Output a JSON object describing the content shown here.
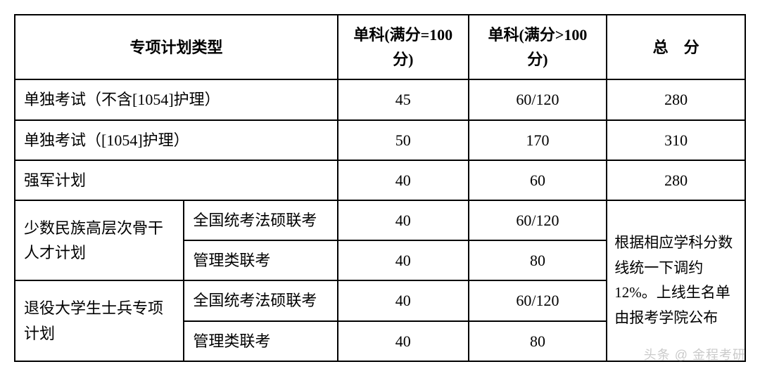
{
  "colors": {
    "border": "#000000",
    "background": "#ffffff",
    "text": "#000000",
    "watermark": "rgba(180,180,180,0.7)"
  },
  "typography": {
    "font_family": "SimSun, 宋体, serif",
    "header_weight": "bold",
    "cell_fontsize": 22,
    "line_height": 1.6
  },
  "headers": {
    "plan_type": "专项计划类型",
    "subject_100": "单科(满分=100 分)",
    "subject_gt100": "单科(满分>100 分)",
    "total": "总　分"
  },
  "rows": {
    "r1": {
      "label": "单独考试（不含[1054]护理）",
      "s1": "45",
      "s2": "60/120",
      "total": "280"
    },
    "r2": {
      "label": "单独考试（[1054]护理）",
      "s1": "50",
      "s2": "170",
      "total": "310"
    },
    "r3": {
      "label": "强军计划",
      "s1": "40",
      "s2": "60",
      "total": "280"
    },
    "r4": {
      "group": "少数民族高层次骨干人才计划",
      "a": {
        "type": "全国统考法硕联考",
        "s1": "40",
        "s2": "60/120"
      },
      "b": {
        "type": "管理类联考",
        "s1": "40",
        "s2": "80"
      }
    },
    "r5": {
      "group": "退役大学生士兵专项计划",
      "a": {
        "type": "全国统考法硕联考",
        "s1": "40",
        "s2": "60/120"
      },
      "b": {
        "type": "管理类联考",
        "s1": "40",
        "s2": "80"
      }
    }
  },
  "note": "根据相应学科分数线统一下调约12%。上线生名单由报考学院公布",
  "watermark": "头条 @ 金程考研"
}
